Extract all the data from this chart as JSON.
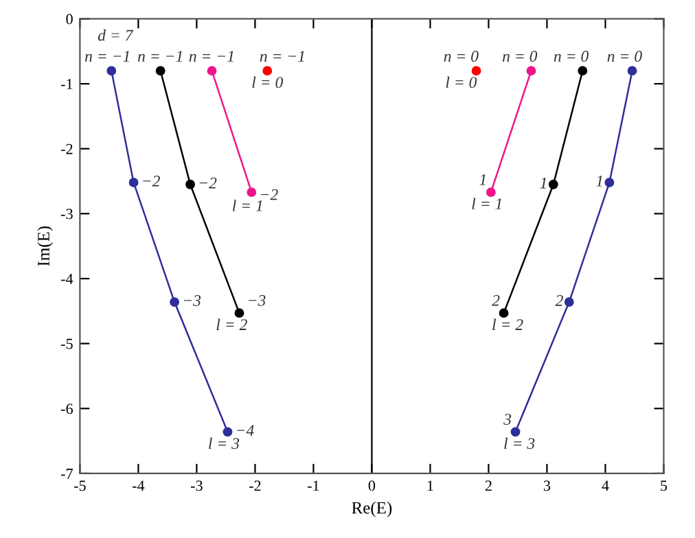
{
  "chart_data": {
    "type": "line",
    "xlabel": "Re(E)",
    "ylabel": "Im(E)",
    "xlim": [
      -5,
      5
    ],
    "ylim": [
      -7,
      0
    ],
    "xticks": [
      -5,
      -4,
      -3,
      -2,
      -1,
      0,
      1,
      2,
      3,
      4,
      5
    ],
    "yticks": [
      -7,
      -6,
      -5,
      -4,
      -3,
      -2,
      -1,
      0
    ],
    "marker": "circle",
    "line_style": "solid",
    "grid": false,
    "legend": false,
    "ref_lines": [
      {
        "axis": "x",
        "value": 0,
        "color": "#000000"
      }
    ],
    "series": [
      {
        "type": "scatter",
        "color": "#ff0000",
        "x": [
          -1.79,
          1.79
        ],
        "values": [
          -0.8,
          -0.8
        ]
      },
      {
        "color": "#f0148c",
        "x": [
          -2.74,
          -2.06
        ],
        "values": [
          -0.8,
          -2.67
        ]
      },
      {
        "color": "#f0148c",
        "x": [
          2.73,
          2.04
        ],
        "values": [
          -0.8,
          -2.67
        ]
      },
      {
        "color": "#000000",
        "x": [
          -3.62,
          -3.11,
          -2.27
        ],
        "values": [
          -0.8,
          -2.55,
          -4.53
        ]
      },
      {
        "color": "#000000",
        "x": [
          3.61,
          3.11,
          2.26
        ],
        "values": [
          -0.8,
          -2.55,
          -4.53
        ]
      },
      {
        "color": "#2e2e9a",
        "x": [
          -4.46,
          -4.08,
          -3.38,
          -2.47
        ],
        "values": [
          -0.8,
          -2.52,
          -4.36,
          -6.36
        ]
      },
      {
        "color": "#2e2e9a",
        "x": [
          4.46,
          4.07,
          3.38,
          2.46
        ],
        "values": [
          -0.8,
          -2.52,
          -4.36,
          -6.36
        ]
      }
    ],
    "annotations": [
      {
        "text": "d = 7",
        "x": -4.46,
        "y": -0.8
      },
      {
        "text": "n = −1",
        "x": -4.46,
        "y": -0.8
      },
      {
        "text": "n = −1",
        "x": -3.62,
        "y": -0.8
      },
      {
        "text": "n = −1",
        "x": -2.74,
        "y": -0.8
      },
      {
        "text": "n = −1",
        "x": -1.79,
        "y": -0.8
      },
      {
        "text": "l = 0",
        "x": -1.79,
        "y": -0.8
      },
      {
        "text": "−2",
        "x": -4.08,
        "y": -2.52
      },
      {
        "text": "−3",
        "x": -3.38,
        "y": -4.36
      },
      {
        "text": "−4",
        "x": -2.47,
        "y": -6.36
      },
      {
        "text": "l = 3",
        "x": -2.47,
        "y": -6.36
      },
      {
        "text": "−2",
        "x": -3.11,
        "y": -2.55
      },
      {
        "text": "−3",
        "x": -2.27,
        "y": -4.53
      },
      {
        "text": "l = 2",
        "x": -2.27,
        "y": -4.53
      },
      {
        "text": "−2",
        "x": -2.06,
        "y": -2.67
      },
      {
        "text": "l = 1",
        "x": -2.06,
        "y": -2.67
      },
      {
        "text": "n = 0",
        "x": 1.79,
        "y": -0.8
      },
      {
        "text": "l = 0",
        "x": 1.79,
        "y": -0.8
      },
      {
        "text": "n = 0",
        "x": 2.73,
        "y": -0.8
      },
      {
        "text": "1",
        "x": 2.04,
        "y": -2.67
      },
      {
        "text": "l = 1",
        "x": 2.04,
        "y": -2.67
      },
      {
        "text": "n = 0",
        "x": 3.61,
        "y": -0.8
      },
      {
        "text": "1",
        "x": 3.11,
        "y": -2.55
      },
      {
        "text": "2",
        "x": 2.26,
        "y": -4.53
      },
      {
        "text": "l = 2",
        "x": 2.26,
        "y": -4.53
      },
      {
        "text": "n = 0",
        "x": 4.46,
        "y": -0.8
      },
      {
        "text": "1",
        "x": 4.07,
        "y": -2.52
      },
      {
        "text": "2",
        "x": 3.38,
        "y": -4.36
      },
      {
        "text": "3",
        "x": 2.46,
        "y": -6.36
      },
      {
        "text": "l = 3",
        "x": 2.46,
        "y": -6.36
      }
    ]
  }
}
